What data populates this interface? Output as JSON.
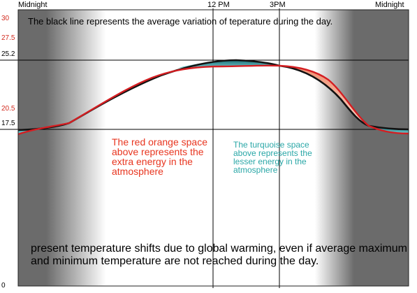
{
  "labels": {
    "top": [
      "Midnight",
      "12 PM",
      "3PM",
      "Midnight"
    ],
    "y_ticks": [
      {
        "text": "30",
        "color": "red"
      },
      {
        "text": "27.5",
        "color": "red"
      },
      {
        "text": "25.2",
        "color": "black"
      },
      {
        "text": "20.5",
        "color": "red"
      },
      {
        "text": "17.5",
        "color": "black"
      },
      {
        "text": "0",
        "color": "black"
      }
    ]
  },
  "title": "The black line represents the average variation of teperature during the day.",
  "red_note": "The red orange space above represents the extra energy in the atmosphere",
  "teal_note": "The turquoise space above represents the lesser energy in the atmosphere",
  "bottom_note": "present temperature shifts due to global warming, even if average maximum and minimum temperature are not reached during the day.",
  "colors": {
    "night": "#6b6b6b",
    "day": "#ffffff",
    "black_line": "#111111",
    "red_line": "#d41e22",
    "extra_fill": "#ef9a7e",
    "lesser_fill": "#2f8f95"
  }
}
